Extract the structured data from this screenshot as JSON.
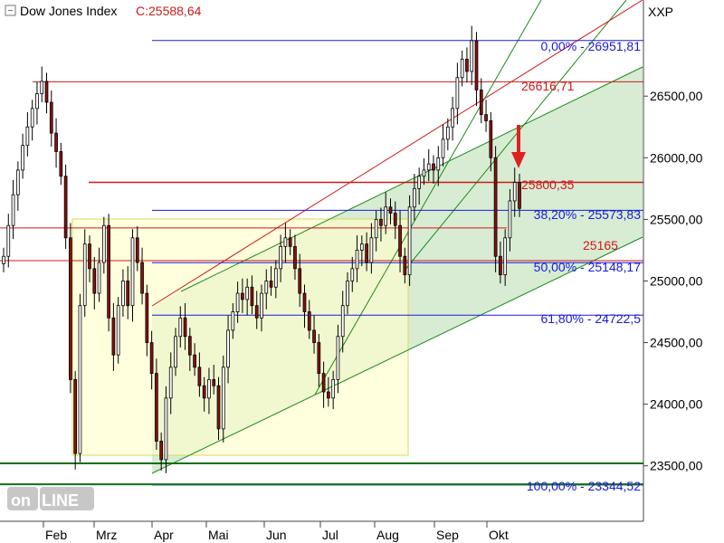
{
  "colors": {
    "fib": "#1a1adb",
    "resistance": "#cc1a1a",
    "channel_fill": "#b8dcae",
    "channel_line": "#1a8a1a",
    "box_fill": "#ffffcc",
    "box_line": "#d8d860",
    "support": "#117011",
    "candle_up": "#ffffff",
    "candle_down": "#8b1010",
    "arrow": "#dd2222"
  },
  "chart_data": {
    "type": "candlestick",
    "title": "Dow Jones Index",
    "close_label": "C:25588,64",
    "y_axis_label": "XXP",
    "x_ticks": [
      "Feb",
      "Mrz",
      "Apr",
      "Mai",
      "Jun",
      "Jul",
      "Aug",
      "Sep",
      "Okt"
    ],
    "y_ticks": [
      "26500,00",
      "26000,00",
      "25500,00",
      "25000,00",
      "24500,00",
      "24000,00",
      "23500,00"
    ],
    "y_tick_values": [
      26500,
      26000,
      25500,
      25000,
      24500,
      24000,
      23500
    ],
    "ylim": [
      23050,
      27280
    ],
    "grid": false,
    "fibonacci": [
      {
        "label": "0,00% - 26951,81",
        "value": 26951.81
      },
      {
        "label": "38,20% - 25573,83",
        "value": 25573.83
      },
      {
        "label": "50,00% - 25148,17",
        "value": 25148.17
      },
      {
        "label": "61,80% - 24722,5",
        "value": 24722.5
      },
      {
        "label": "100,00% - 23344,52",
        "value": 23344.52
      }
    ],
    "levels": [
      {
        "label": "26616,71",
        "value": 26616.71
      },
      {
        "label": "25800,35",
        "value": 25800.35
      },
      {
        "label": "25165",
        "value": 25165
      }
    ],
    "support_levels": [
      23520,
      23350
    ],
    "closes": [
      25200,
      25450,
      25700,
      25900,
      26100,
      26250,
      26400,
      26520,
      26620,
      26450,
      26200,
      26050,
      25850,
      25350,
      24200,
      23600,
      24800,
      25300,
      25100,
      24900,
      25150,
      25450,
      24700,
      24400,
      24800,
      25000,
      24800,
      25350,
      25150,
      24900,
      24500,
      24250,
      23700,
      23550,
      24050,
      24300,
      24550,
      24700,
      24550,
      24400,
      24300,
      24150,
      24050,
      24200,
      24150,
      23800,
      24300,
      24600,
      24750,
      24900,
      24850,
      24950,
      24800,
      24700,
      24900,
      25000,
      24950,
      25100,
      25280,
      25350,
      25280,
      25100,
      24900,
      24750,
      24600,
      24500,
      24250,
      24100,
      24050,
      24200,
      24550,
      24800,
      25000,
      25100,
      25250,
      25300,
      25150,
      25350,
      25500,
      25450,
      25600,
      25550,
      25450,
      25200,
      25050,
      25600,
      25750,
      25850,
      25900,
      25950,
      25900,
      26000,
      26150,
      26250,
      26400,
      26650,
      26800,
      26700,
      26950,
      26550,
      26350,
      26300,
      26000,
      25200,
      25050,
      25350,
      25650,
      25800,
      25588.64
    ]
  }
}
